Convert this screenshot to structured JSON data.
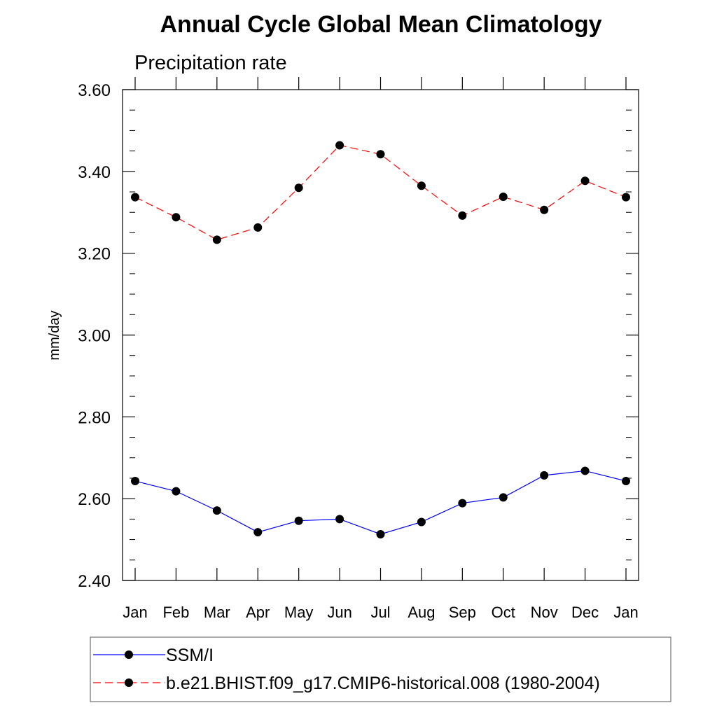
{
  "chart_data": {
    "type": "line",
    "title": "Annual Cycle Global Mean Climatology",
    "subtitle": "Precipitation rate",
    "xlabel": "",
    "ylabel": "mm/day",
    "categories": [
      "Jan",
      "Feb",
      "Mar",
      "Apr",
      "May",
      "Jun",
      "Jul",
      "Aug",
      "Sep",
      "Oct",
      "Nov",
      "Dec",
      "Jan"
    ],
    "ylim": [
      2.4,
      3.6
    ],
    "yticks": [
      2.4,
      2.6,
      2.8,
      3.0,
      3.2,
      3.4,
      3.6
    ],
    "ytick_labels": [
      "2.40",
      "2.60",
      "2.80",
      "3.00",
      "3.20",
      "3.40",
      "3.60"
    ],
    "grid": false,
    "legend_position": "bottom",
    "series": [
      {
        "name": "SSM/I",
        "color": "#0000ff",
        "line_style": "solid",
        "marker": "filled-circle",
        "values": [
          2.643,
          2.618,
          2.571,
          2.518,
          2.546,
          2.55,
          2.513,
          2.543,
          2.589,
          2.603,
          2.657,
          2.668,
          2.643
        ]
      },
      {
        "name": "b.e21.BHIST.f09_g17.CMIP6-historical.008 (1980-2004)",
        "color": "#ff0000",
        "line_style": "dashed",
        "marker": "filled-circle",
        "values": [
          3.337,
          3.288,
          3.233,
          3.263,
          3.36,
          3.464,
          3.442,
          3.365,
          3.292,
          3.338,
          3.306,
          3.377,
          3.337
        ]
      }
    ]
  }
}
